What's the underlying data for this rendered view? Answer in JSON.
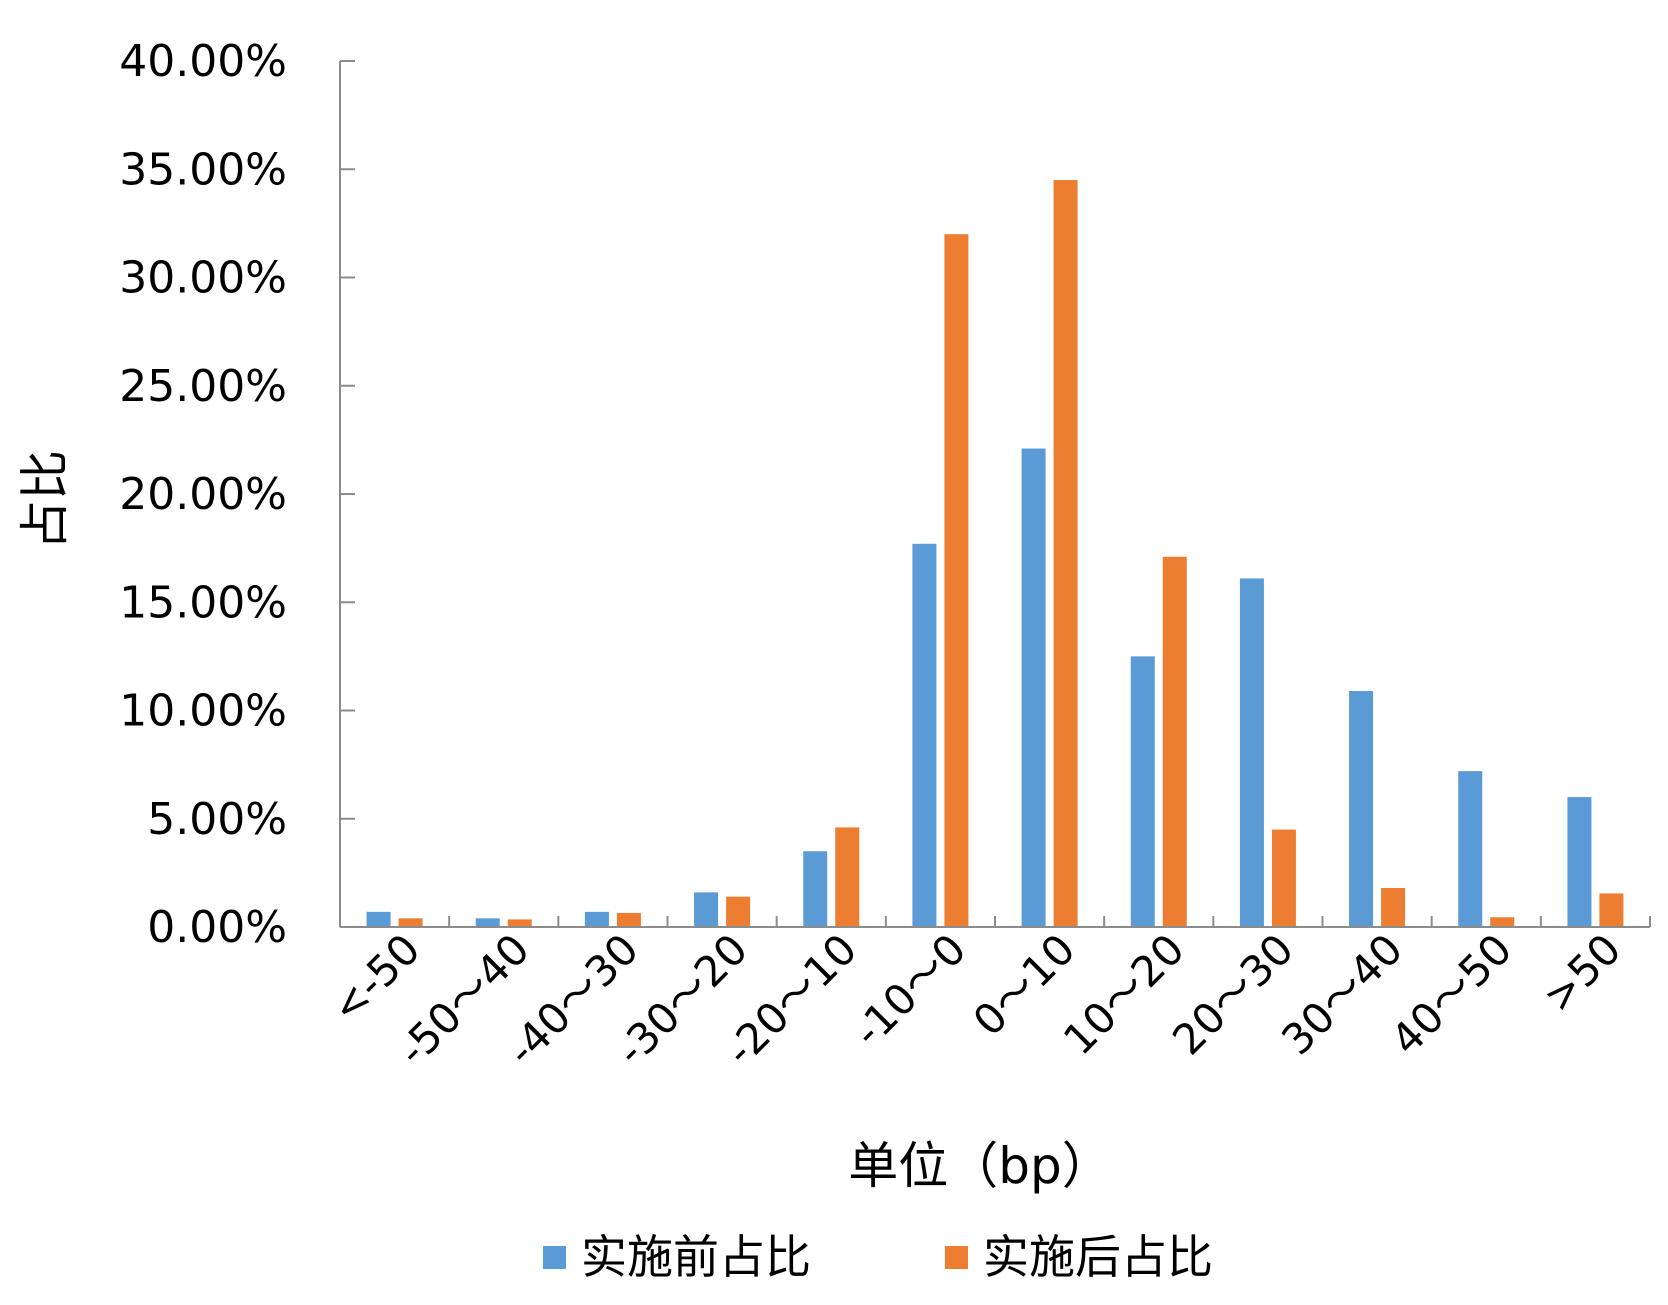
{
  "chart_data": {
    "type": "bar",
    "title": "",
    "xlabel": "单位（bp）",
    "ylabel": "占比",
    "ylim": [
      0,
      40
    ],
    "yticks": [
      "0.00%",
      "5.00%",
      "10.00%",
      "15.00%",
      "20.00%",
      "25.00%",
      "30.00%",
      "35.00%",
      "40.00%"
    ],
    "grid": false,
    "legend_position": "bottom",
    "categories": [
      "<-50",
      "-50～40",
      "-40～30",
      "-30～20",
      "-20～10",
      "-10～0",
      "0～10",
      "10～20",
      "20～30",
      "30～40",
      "40～50",
      ">50"
    ],
    "series": [
      {
        "name": "实施前占比",
        "color": "#5b9bd5",
        "values": [
          0.7,
          0.4,
          0.7,
          1.6,
          3.5,
          17.7,
          22.1,
          12.5,
          16.1,
          10.9,
          7.2,
          6.0
        ]
      },
      {
        "name": "实施后占比",
        "color": "#ed7d31",
        "values": [
          0.4,
          0.35,
          0.65,
          1.4,
          4.6,
          32.0,
          34.5,
          17.1,
          4.5,
          1.8,
          0.45,
          1.55
        ]
      }
    ]
  }
}
